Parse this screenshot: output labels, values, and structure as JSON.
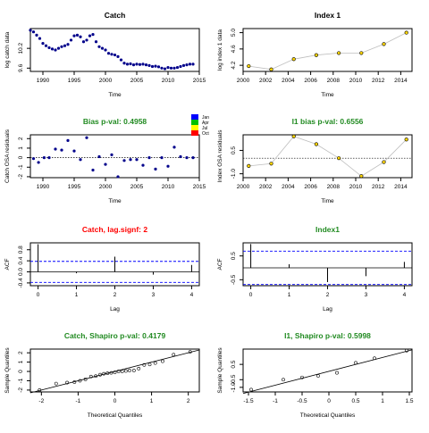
{
  "colors": {
    "points": "#00008b",
    "black": "#000000",
    "green": "#228b22",
    "red": "#ff0000",
    "gray": "#bebebe",
    "blue_dashed": "#00008b",
    "fill_yellow": "#ffd700",
    "bar_blue": "#0000ff"
  },
  "legend": {
    "items": [
      "Jan",
      "Apr",
      "Jul",
      "Oct"
    ],
    "colors": [
      "#0000ff",
      "#00c000",
      "#ffff00",
      "#ff0000"
    ]
  },
  "chart_data": [
    {
      "id": "catch",
      "type": "scatter",
      "title": "Catch",
      "title_color": "#000000",
      "xlabel": "Time",
      "ylabel": "log catch data",
      "xlim": [
        1988,
        2015
      ],
      "ylim": [
        9.5,
        10.8
      ],
      "xticks": [
        1990,
        1995,
        2000,
        2005,
        2010,
        2015
      ],
      "yticks": [
        9.6,
        10.2
      ],
      "ytick_labels": [
        "9.6",
        "10.2"
      ],
      "x": [
        1988,
        1988.5,
        1989,
        1989.5,
        1990,
        1990.5,
        1991,
        1991.5,
        1992,
        1992.5,
        1993,
        1993.5,
        1994,
        1994.5,
        1995,
        1995.5,
        1996,
        1996.5,
        1997,
        1997.5,
        1998,
        1998.5,
        1999,
        1999.5,
        2000,
        2000.5,
        2001,
        2001.5,
        2002,
        2002.5,
        2003,
        2003.5,
        2004,
        2004.5,
        2005,
        2005.5,
        2006,
        2006.5,
        2007,
        2007.5,
        2008,
        2008.5,
        2009,
        2009.5,
        2010,
        2010.5,
        2011,
        2011.5,
        2012,
        2012.5,
        2013,
        2013.5,
        2014
      ],
      "y": [
        10.75,
        10.7,
        10.6,
        10.5,
        10.35,
        10.28,
        10.22,
        10.18,
        10.15,
        10.2,
        10.25,
        10.28,
        10.32,
        10.45,
        10.58,
        10.6,
        10.55,
        10.4,
        10.45,
        10.58,
        10.62,
        10.4,
        10.25,
        10.2,
        10.15,
        10.05,
        10.02,
        10.0,
        9.95,
        9.85,
        9.75,
        9.72,
        9.73,
        9.7,
        9.72,
        9.71,
        9.72,
        9.7,
        9.68,
        9.65,
        9.66,
        9.64,
        9.6,
        9.58,
        9.62,
        9.6,
        9.6,
        9.62,
        9.65,
        9.68,
        9.7,
        9.72,
        9.72
      ]
    },
    {
      "id": "index1",
      "type": "line",
      "title": "Index 1",
      "title_color": "#000000",
      "xlabel": "Time",
      "ylabel": "log index 1 data",
      "xlim": [
        2000,
        2015
      ],
      "ylim": [
        4.05,
        5.1
      ],
      "xticks": [
        2000,
        2002,
        2004,
        2006,
        2008,
        2010,
        2012,
        2014
      ],
      "yticks": [
        4.2,
        4.6,
        5.0
      ],
      "ytick_labels": [
        "4.2",
        "4.6",
        "5.0"
      ],
      "x": [
        2000.5,
        2002.5,
        2004.5,
        2006.5,
        2008.5,
        2010.5,
        2012.5,
        2014.5
      ],
      "y": [
        4.18,
        4.1,
        4.35,
        4.45,
        4.5,
        4.5,
        4.72,
        5.0
      ]
    },
    {
      "id": "bias_catch",
      "type": "scatter",
      "title": "Bias p-val: 0.4958",
      "title_color": "#228b22",
      "xlabel": "Time",
      "ylabel": "Catch OSA residuals",
      "xlim": [
        1988,
        2015
      ],
      "ylim": [
        -2.1,
        2.4
      ],
      "xticks": [
        1990,
        1995,
        2000,
        2005,
        2010,
        2015
      ],
      "yticks": [
        -2,
        -1,
        0,
        1,
        2
      ],
      "ytick_labels": [
        "-2",
        "-1",
        "0",
        "1",
        "2"
      ],
      "x": [
        1988.5,
        1989.3,
        1990.2,
        1991,
        1992,
        1993,
        1994,
        1995,
        1996,
        1997,
        1998,
        1999,
        2000,
        2001,
        2002,
        2003,
        2004,
        2005,
        2006,
        2007,
        2008,
        2009,
        2010,
        2011,
        2012,
        2013,
        2014
      ],
      "y": [
        -0.1,
        -0.5,
        0.0,
        0.0,
        0.9,
        0.8,
        1.8,
        0.7,
        -0.2,
        2.1,
        -1.3,
        0.1,
        -0.7,
        0.3,
        -2.0,
        -0.3,
        -0.2,
        -0.2,
        -0.8,
        0.0,
        -1.2,
        0.0,
        -0.9,
        1.1,
        0.1,
        0.0,
        0.0
      ]
    },
    {
      "id": "bias_index",
      "type": "line",
      "title": "I1 bias p-val: 0.6556",
      "title_color": "#228b22",
      "xlabel": "Time",
      "ylabel": "Index OSA residuals",
      "xlim": [
        2000,
        2015
      ],
      "ylim": [
        -1.25,
        1.5
      ],
      "xticks": [
        2000,
        2002,
        2004,
        2006,
        2008,
        2010,
        2012,
        2014
      ],
      "yticks": [
        -1.0,
        0.5
      ],
      "ytick_labels": [
        "-1.0",
        "0.5"
      ],
      "x": [
        2000.5,
        2002.5,
        2004.5,
        2006.5,
        2008.5,
        2010.5,
        2012.5,
        2014.5
      ],
      "y": [
        -0.5,
        -0.35,
        1.4,
        0.9,
        0.0,
        -1.15,
        -0.25,
        1.2
      ]
    },
    {
      "id": "acf_catch",
      "type": "bar",
      "title": "Catch, lag.signf: 2",
      "title_color": "#ff0000",
      "xlabel": "Lag",
      "ylabel": "ACF",
      "xlim": [
        -0.2,
        4.2
      ],
      "ylim": [
        -0.5,
        1.05
      ],
      "xticks": [
        0,
        1,
        2,
        3,
        4
      ],
      "yticks": [
        -0.4,
        0.0,
        0.4,
        0.8
      ],
      "ytick_labels": [
        "-0.4",
        "0.0",
        "0.4",
        "0.8"
      ],
      "x": [
        0,
        1,
        2,
        3,
        4
      ],
      "values": [
        1.0,
        -0.05,
        0.55,
        -0.1,
        0.25
      ],
      "ci_dashed": [
        0.38,
        -0.38
      ]
    },
    {
      "id": "acf_index",
      "type": "bar",
      "title": "Index1",
      "title_color": "#228b22",
      "xlabel": "Lag",
      "ylabel": "ACF",
      "xlim": [
        -0.2,
        4.2
      ],
      "ylim": [
        -0.75,
        1.05
      ],
      "xticks": [
        0,
        1,
        2,
        3,
        4
      ],
      "yticks": [
        -0.5,
        0.5
      ],
      "ytick_labels": [
        "-0.5",
        "0.5"
      ],
      "x": [
        0,
        1,
        2,
        3,
        4
      ],
      "values": [
        1.0,
        0.15,
        -0.6,
        -0.35,
        0.25
      ],
      "ci_dashed": [
        0.7,
        -0.7
      ]
    },
    {
      "id": "qq_catch",
      "type": "scatter",
      "title": "Catch, Shapiro p-val: 0.4179",
      "title_color": "#228b22",
      "xlabel": "Theoretical Quantiles",
      "ylabel": "Sample Quantiles",
      "xlim": [
        -2.3,
        2.3
      ],
      "ylim": [
        -2.2,
        2.4
      ],
      "xticks": [
        -2,
        -1,
        0,
        1,
        2
      ],
      "yticks": [
        -2,
        -1,
        0,
        1,
        2
      ],
      "ytick_labels": [
        "-2",
        "-1",
        "0",
        "1",
        "2"
      ],
      "x": [
        -2.05,
        -1.6,
        -1.3,
        -1.1,
        -0.95,
        -0.8,
        -0.65,
        -0.52,
        -0.4,
        -0.3,
        -0.2,
        -0.1,
        0.0,
        0.1,
        0.2,
        0.3,
        0.4,
        0.52,
        0.65,
        0.8,
        0.95,
        1.1,
        1.3,
        1.6,
        2.05
      ],
      "y": [
        -2.0,
        -1.3,
        -1.2,
        -1.15,
        -1.0,
        -0.85,
        -0.55,
        -0.5,
        -0.35,
        -0.25,
        -0.2,
        -0.15,
        -0.1,
        0.0,
        0.0,
        0.05,
        0.1,
        0.1,
        0.3,
        0.7,
        0.75,
        0.9,
        1.1,
        1.8,
        2.1
      ],
      "line": [
        [
          -2.3,
          -2.3
        ],
        [
          2.3,
          2.3
        ]
      ]
    },
    {
      "id": "qq_index",
      "type": "scatter",
      "title": "I1, Shapiro p-val: 0.5998",
      "title_color": "#228b22",
      "xlabel": "Theoretical Quantiles",
      "ylabel": "Sample Quantiles",
      "xlim": [
        -1.6,
        1.55
      ],
      "ylim": [
        -1.3,
        1.5
      ],
      "xticks": [
        -1.5,
        -1.0,
        -0.5,
        0.0,
        0.5,
        1.0,
        1.5
      ],
      "yticks": [
        -1.0,
        -0.5,
        0.5
      ],
      "ytick_labels": [
        "-1.0",
        "-0.5",
        "0.5"
      ],
      "x": [
        -1.45,
        -0.85,
        -0.5,
        -0.2,
        0.15,
        0.5,
        0.85,
        1.45
      ],
      "y": [
        -1.15,
        -0.5,
        -0.35,
        -0.25,
        -0.05,
        0.6,
        0.9,
        1.4
      ],
      "line": [
        [
          -1.6,
          -1.4
        ],
        [
          1.55,
          1.45
        ]
      ]
    }
  ]
}
